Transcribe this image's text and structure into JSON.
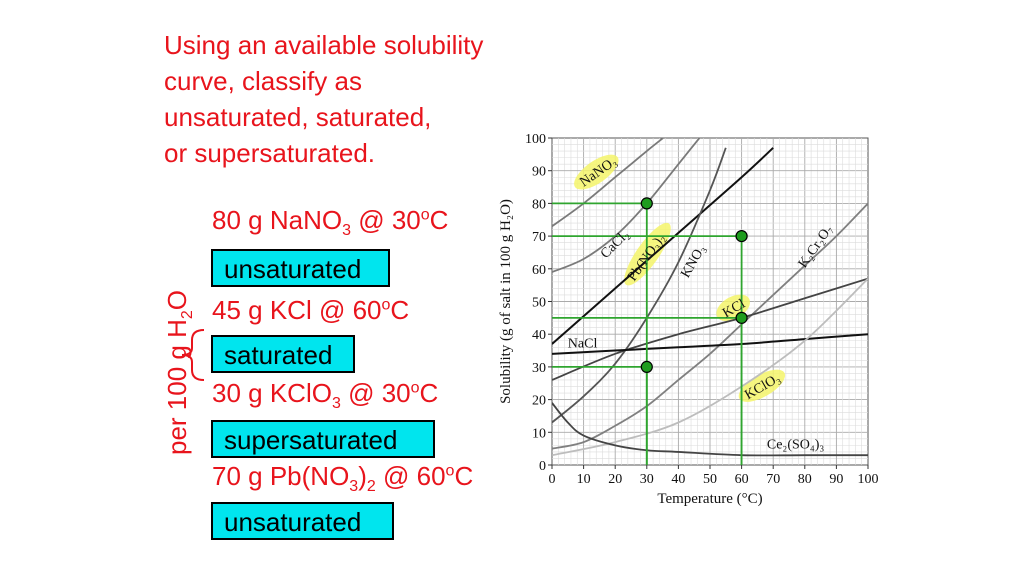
{
  "intro": {
    "line1": "Using an available solubility",
    "line2": "curve, classify as",
    "line3": "unsaturated, saturated,",
    "line4": "or supersaturated."
  },
  "problems": [
    {
      "amount": "80 g NaNO",
      "sub1": "3",
      "tail1": "",
      "sub2": "",
      "at": " @ 30",
      "sup": "o",
      "unit": "C",
      "answer": "unsaturated"
    },
    {
      "amount": "45 g KCl",
      "sub1": "",
      "tail1": "",
      "sub2": "",
      "at": " @ 60",
      "sup": "o",
      "unit": "C",
      "answer": "saturated"
    },
    {
      "amount": "30 g KClO",
      "sub1": "3",
      "tail1": "",
      "sub2": "",
      "at": " @ 30",
      "sup": "o",
      "unit": "C",
      "answer": "supersaturated"
    },
    {
      "amount": "70 g Pb(NO",
      "sub1": "3",
      "tail1": ")",
      "sub2": "2",
      "at": " @ 60",
      "sup": "o",
      "unit": "C",
      "answer": "unsaturated"
    }
  ],
  "side_label": {
    "text": "per 100 g H",
    "sub": "2",
    "tail": "O"
  },
  "colors": {
    "text_red": "#e8141c",
    "answer_bg": "#00e5ee",
    "guide_green": "#2fa52f",
    "highlight": "#f4f46a"
  },
  "chart_data": {
    "type": "line",
    "xlabel": "Temperature (°C)",
    "ylabel": "Solubility (g of salt in 100 g H₂O)",
    "xlim": [
      0,
      100
    ],
    "ylim": [
      0,
      100
    ],
    "xticks": [
      0,
      10,
      20,
      30,
      40,
      50,
      60,
      70,
      80,
      90,
      100
    ],
    "yticks": [
      0,
      10,
      20,
      30,
      40,
      50,
      60,
      70,
      80,
      90,
      100
    ],
    "grid": true,
    "series": [
      {
        "name": "NaNO₃",
        "color": "#7a7a7a",
        "width": 1.8,
        "x": [
          0,
          10,
          20,
          30,
          40,
          50
        ],
        "y": [
          73,
          80,
          88,
          96,
          104,
          114
        ]
      },
      {
        "name": "CaCl₂",
        "color": "#7a7a7a",
        "width": 1.8,
        "x": [
          0,
          10,
          20,
          30,
          40,
          50,
          55
        ],
        "y": [
          59,
          63,
          70,
          80,
          92,
          104,
          110
        ]
      },
      {
        "name": "Pb(NO₃)₂",
        "color": "#111111",
        "width": 2.0,
        "x": [
          0,
          20,
          40,
          60,
          70
        ],
        "y": [
          37,
          54,
          71,
          88,
          97
        ]
      },
      {
        "name": "KNO₃",
        "color": "#555555",
        "width": 1.8,
        "x": [
          0,
          10,
          20,
          30,
          40,
          50,
          55
        ],
        "y": [
          13,
          21,
          31,
          45,
          62,
          84,
          97
        ]
      },
      {
        "name": "K₂Cr₂O₇",
        "color": "#808080",
        "width": 1.8,
        "x": [
          0,
          10,
          20,
          30,
          40,
          50,
          60,
          70,
          80,
          90,
          100
        ],
        "y": [
          5,
          7,
          12,
          18,
          26,
          34,
          43,
          52,
          61,
          70,
          80
        ]
      },
      {
        "name": "KCl",
        "color": "#444444",
        "width": 1.8,
        "x": [
          0,
          20,
          40,
          60,
          80,
          100
        ],
        "y": [
          26,
          34,
          40,
          45,
          51,
          57
        ]
      },
      {
        "name": "NaCl",
        "color": "#111111",
        "width": 2.0,
        "x": [
          0,
          20,
          40,
          60,
          80,
          100
        ],
        "y": [
          34,
          35,
          36,
          37,
          38.5,
          40
        ]
      },
      {
        "name": "KClO₃",
        "color": "#bdbdbd",
        "width": 1.8,
        "x": [
          0,
          20,
          40,
          60,
          80,
          100
        ],
        "y": [
          3,
          7,
          13,
          24,
          38,
          57
        ]
      },
      {
        "name": "Ce₂(SO₄)₃",
        "color": "#444444",
        "width": 1.8,
        "x": [
          0,
          5,
          10,
          20,
          30,
          40,
          60,
          80,
          100
        ],
        "y": [
          19,
          13,
          9,
          6,
          4.5,
          4,
          3,
          3,
          3
        ]
      }
    ],
    "points": [
      {
        "x": 30,
        "y": 80
      },
      {
        "x": 60,
        "y": 70
      },
      {
        "x": 60,
        "y": 45
      },
      {
        "x": 30,
        "y": 30
      }
    ],
    "labels": [
      {
        "text": "NaNO₃",
        "x": 10,
        "y": 85,
        "angle": -35,
        "highlight": true
      },
      {
        "text": "CaCl₂",
        "x": 17,
        "y": 63,
        "angle": -45,
        "highlight": false
      },
      {
        "text": "Pb(NO₃)₂",
        "x": 26,
        "y": 56,
        "angle": -55,
        "highlight": true
      },
      {
        "text": "KNO₃",
        "x": 43,
        "y": 57,
        "angle": -60,
        "highlight": false
      },
      {
        "text": "K₂Cr₂O₇",
        "x": 80,
        "y": 60,
        "angle": -55,
        "highlight": false
      },
      {
        "text": "KCl",
        "x": 55,
        "y": 45,
        "angle": -30,
        "highlight": true
      },
      {
        "text": "NaCl",
        "x": 5,
        "y": 36,
        "angle": 0,
        "highlight": false
      },
      {
        "text": "KClO₃",
        "x": 62,
        "y": 20,
        "angle": -30,
        "highlight": true
      },
      {
        "text": "Ce₂(SO₄)₃",
        "x": 68,
        "y": 5,
        "angle": 0,
        "highlight": false
      }
    ]
  }
}
